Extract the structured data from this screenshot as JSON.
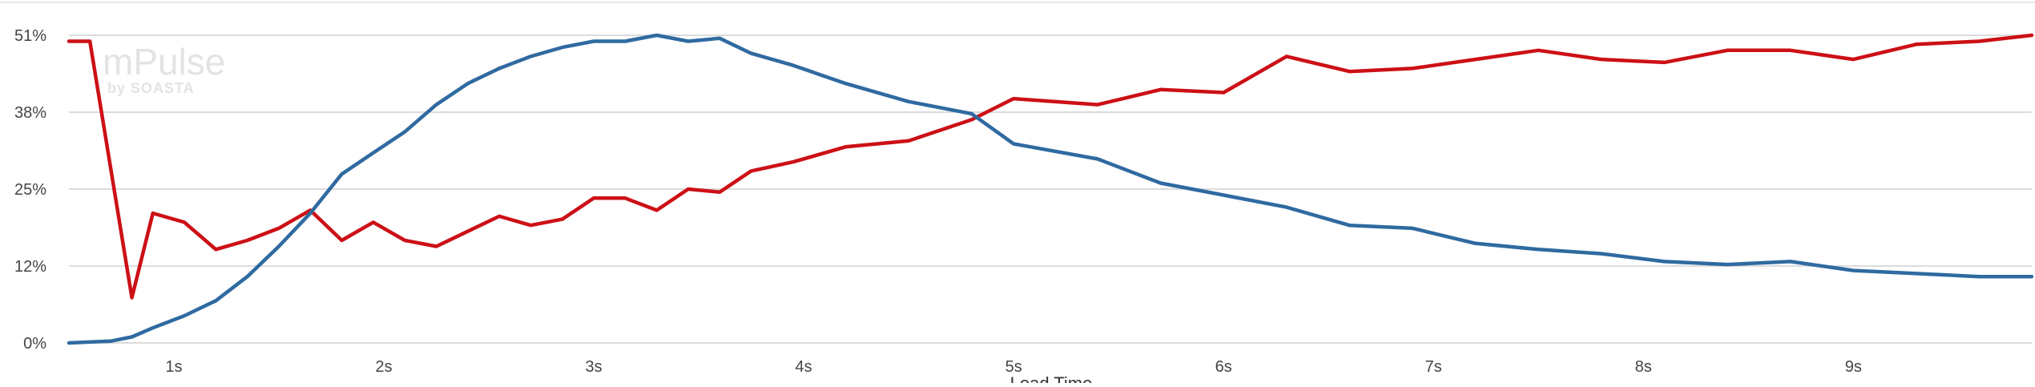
{
  "chart_data": {
    "type": "line",
    "title": "",
    "xlabel": "Load Time",
    "ylabel": "",
    "x_ticks": [
      "1s",
      "2s",
      "3s",
      "4s",
      "5s",
      "6s",
      "7s",
      "8s",
      "9s"
    ],
    "y_ticks": [
      "0%",
      "12%",
      "25%",
      "38%",
      "51%"
    ],
    "y_tick_values": [
      0,
      12.75,
      25.5,
      38.25,
      51
    ],
    "xlim": [
      0.5,
      9.85
    ],
    "ylim": [
      0,
      51
    ],
    "grid": true,
    "legend": "none",
    "watermark": {
      "title": "mPulse",
      "subtitle": "by SOASTA"
    },
    "series": [
      {
        "color": "#cc1016",
        "x": [
          0.5,
          0.6,
          0.8,
          0.9,
          1.05,
          1.2,
          1.35,
          1.5,
          1.65,
          1.8,
          1.95,
          2.1,
          2.25,
          2.4,
          2.55,
          2.7,
          2.85,
          3.0,
          3.15,
          3.3,
          3.45,
          3.6,
          3.75,
          3.95,
          4.2,
          4.5,
          4.8,
          5.0,
          5.4,
          5.7,
          6.0,
          6.3,
          6.6,
          6.9,
          7.2,
          7.5,
          7.8,
          8.1,
          8.4,
          8.7,
          9.0,
          9.3,
          9.6,
          9.85
        ],
        "y": [
          50,
          50,
          7.5,
          21.5,
          20,
          15.5,
          17,
          19,
          22,
          17,
          20,
          17,
          16,
          18.5,
          21,
          19.5,
          20.5,
          24,
          24,
          22,
          25.5,
          25,
          28.5,
          30,
          32.5,
          33.5,
          37,
          40.5,
          39.5,
          42,
          41.5,
          47.5,
          45,
          45.5,
          47,
          48.5,
          47,
          46.5,
          48.5,
          48.5,
          47,
          49.5,
          50,
          51
        ]
      },
      {
        "color": "#2f6aa0",
        "x": [
          0.5,
          0.7,
          0.8,
          0.9,
          1.05,
          1.2,
          1.35,
          1.5,
          1.65,
          1.8,
          1.95,
          2.1,
          2.25,
          2.4,
          2.55,
          2.7,
          2.85,
          3.0,
          3.15,
          3.3,
          3.45,
          3.6,
          3.75,
          3.95,
          4.2,
          4.5,
          4.8,
          5.0,
          5.4,
          5.7,
          6.0,
          6.3,
          6.6,
          6.9,
          7.2,
          7.5,
          7.8,
          8.1,
          8.4,
          8.7,
          9.0,
          9.3,
          9.6,
          9.85
        ],
        "y": [
          0,
          0.3,
          1,
          2.5,
          4.5,
          7,
          11,
          16,
          21.5,
          28,
          31.5,
          35,
          39.5,
          43,
          45.5,
          47.5,
          49,
          50,
          50,
          51,
          50,
          50.5,
          48,
          46,
          43,
          40,
          38,
          33,
          30.5,
          26.5,
          24.5,
          22.5,
          19.5,
          19,
          16.5,
          15.5,
          14.8,
          13.5,
          13,
          13.5,
          12,
          11.5,
          11,
          11
        ]
      }
    ]
  }
}
